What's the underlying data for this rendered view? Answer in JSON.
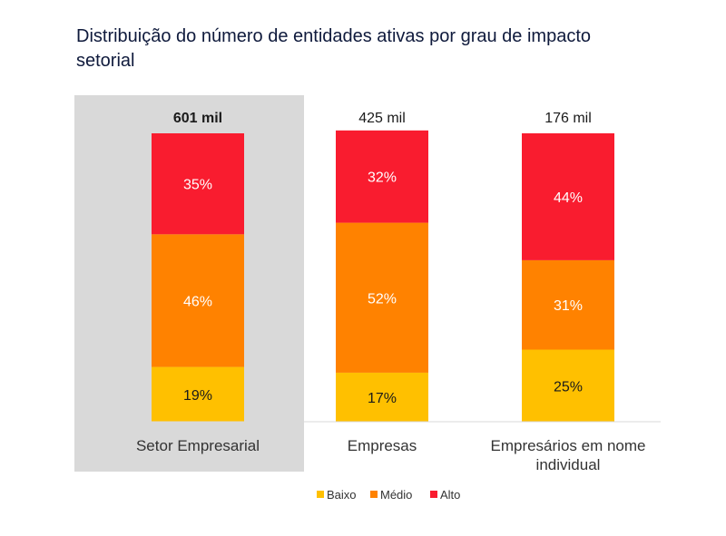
{
  "title": "Distribuição do número de entidades ativas por grau de impacto setorial",
  "chart_data": {
    "type": "bar",
    "stacked": true,
    "unit": "%",
    "title": "Distribuição do número de entidades ativas por grau de impacto setorial",
    "categories": [
      {
        "lines": [
          "Setor Empresarial"
        ],
        "total": "601 mil",
        "highlight": true
      },
      {
        "lines": [
          "Empresas"
        ],
        "total": "425 mil",
        "highlight": false
      },
      {
        "lines": [
          "Empresários em nome",
          "individual"
        ],
        "total": "176 mil",
        "highlight": false
      }
    ],
    "series": [
      {
        "name": "Baixo",
        "color": "#ffc000",
        "values": [
          19,
          17,
          25
        ]
      },
      {
        "name": "Médio",
        "color": "#ff8200",
        "values": [
          46,
          52,
          31
        ]
      },
      {
        "name": "Alto",
        "color": "#f91c2f",
        "values": [
          35,
          32,
          44
        ]
      }
    ],
    "ylim": [
      0,
      100
    ],
    "legend_position": "bottom",
    "highlight_color": "#d9d9d9",
    "axis_color": "#d9d9d9"
  }
}
